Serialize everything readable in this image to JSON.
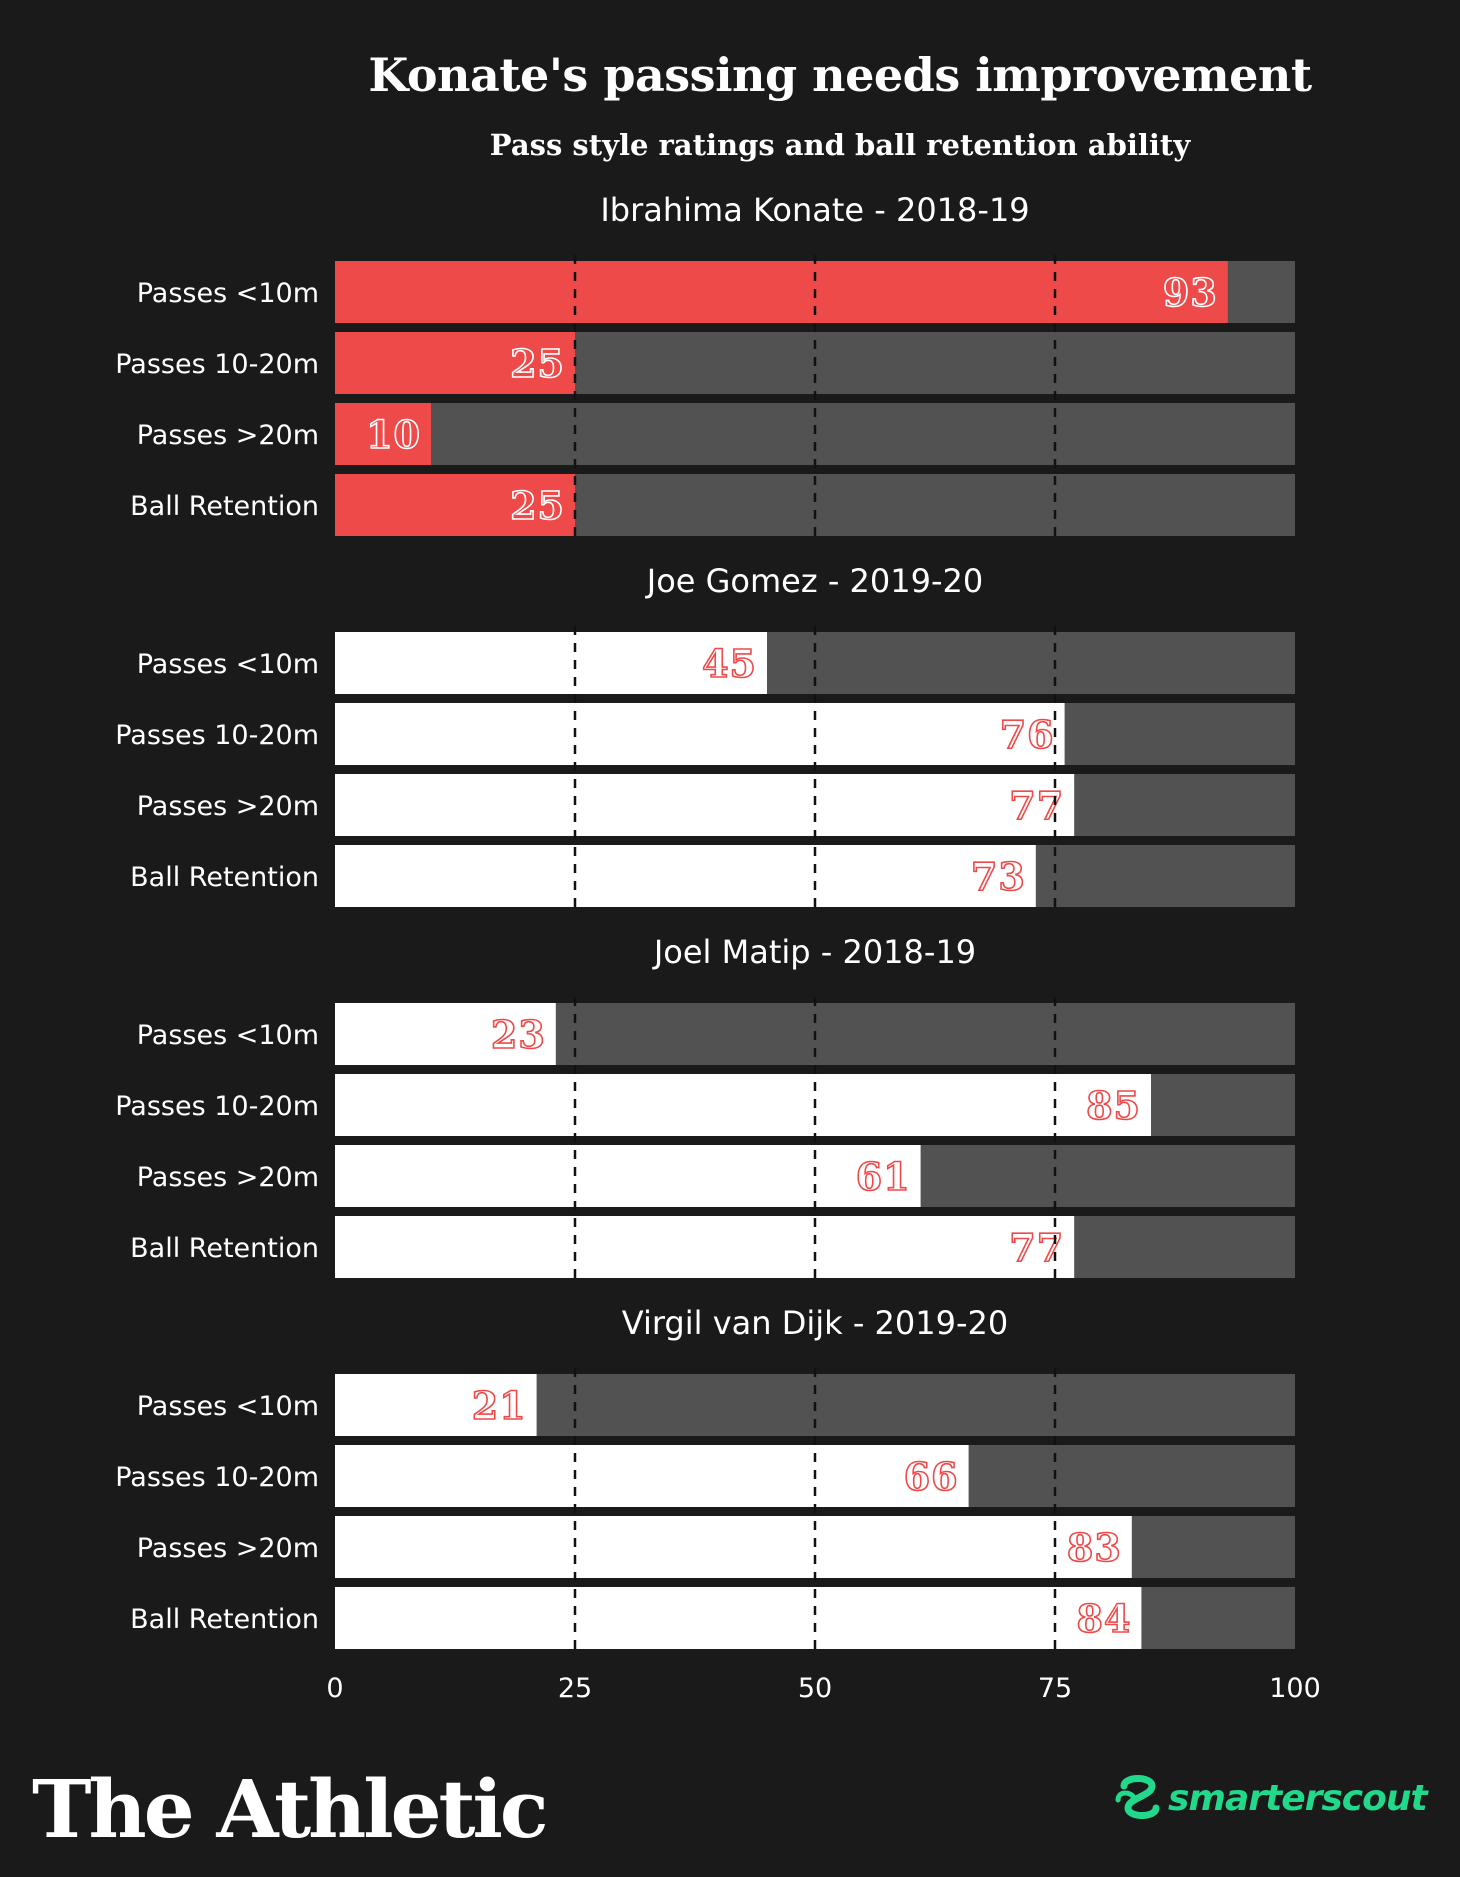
{
  "title": "Konate's passing needs improvement",
  "subtitle": "Pass style ratings and ball retention ability",
  "colors": {
    "background": "#1a1a1a",
    "track": "#525252",
    "highlight": "#ef4a4a",
    "comparison": "#ffffff",
    "value_on_highlight": "#ffffff",
    "value_on_comparison": "#ef4a4a",
    "partner_logo": "#22d88a"
  },
  "chart_data": {
    "type": "bar",
    "orientation": "horizontal",
    "xlim": [
      0,
      100
    ],
    "xticks": [
      0,
      25,
      50,
      75,
      100
    ],
    "gridlines": "dashed at 25, 50, 75",
    "categories": [
      "Passes <10m",
      "Passes 10-20m",
      "Passes >20m",
      "Ball Retention"
    ],
    "panels": [
      {
        "title": "Ibrahima Konate - 2018-19",
        "highlight": true,
        "values": [
          93,
          25,
          10,
          25
        ]
      },
      {
        "title": "Joe Gomez - 2019-20",
        "highlight": false,
        "values": [
          45,
          76,
          77,
          73
        ]
      },
      {
        "title": "Joel Matip - 2018-19",
        "highlight": false,
        "values": [
          23,
          85,
          61,
          77
        ]
      },
      {
        "title": "Virgil van Dijk - 2019-20",
        "highlight": false,
        "values": [
          21,
          66,
          83,
          84
        ]
      }
    ]
  },
  "branding": {
    "publisher": "The Athletic",
    "partner": "smarterscout",
    "partner_icon": "smarterscout-s-logo-icon"
  }
}
